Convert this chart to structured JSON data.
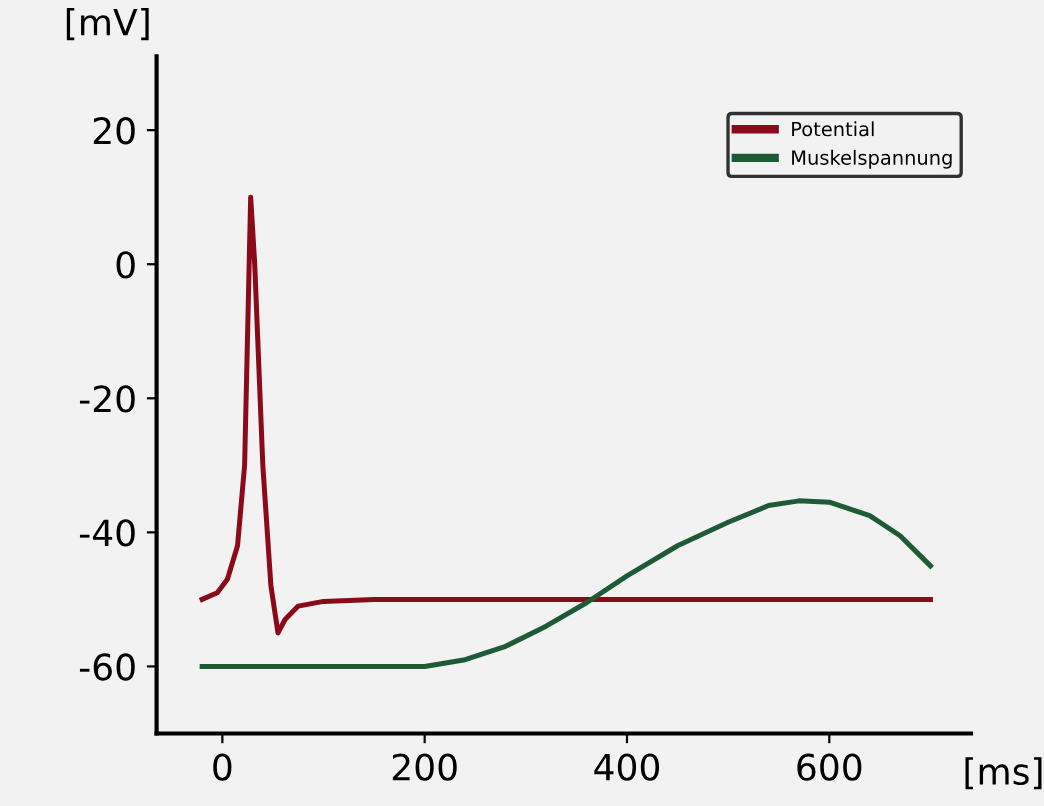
{
  "chart_data": {
    "type": "line",
    "xlabel": "[ms]",
    "ylabel": "[mV]",
    "xlim": [
      -65,
      740
    ],
    "ylim": [
      -70,
      31
    ],
    "xticks": [
      0,
      200,
      400,
      600
    ],
    "yticks": [
      -60,
      -40,
      -20,
      0,
      20
    ],
    "legend": "top right",
    "grid": false,
    "marker": "none",
    "line_style": "solid",
    "series": [
      {
        "name": "Potential",
        "color": "#8b0a1a",
        "x": [
          -20,
          -5,
          5,
          15,
          22,
          28,
          32,
          40,
          48,
          55,
          62,
          75,
          100,
          150,
          200,
          400,
          700
        ],
        "values": [
          -50,
          -49,
          -47,
          -42,
          -30,
          10,
          0,
          -30,
          -48,
          -55,
          -53,
          -51,
          -50.3,
          -50,
          -50,
          -50,
          -50
        ]
      },
      {
        "name": "Muskelspannung",
        "color": "#1e5a36",
        "x": [
          -20,
          100,
          200,
          240,
          280,
          320,
          360,
          400,
          450,
          500,
          540,
          570,
          600,
          640,
          670,
          700
        ],
        "values": [
          -60,
          -60,
          -60,
          -59,
          -57,
          -54,
          -50.5,
          -46.5,
          -42,
          -38.5,
          -36,
          -35.3,
          -35.5,
          -37.5,
          -40.5,
          -45
        ]
      }
    ]
  }
}
